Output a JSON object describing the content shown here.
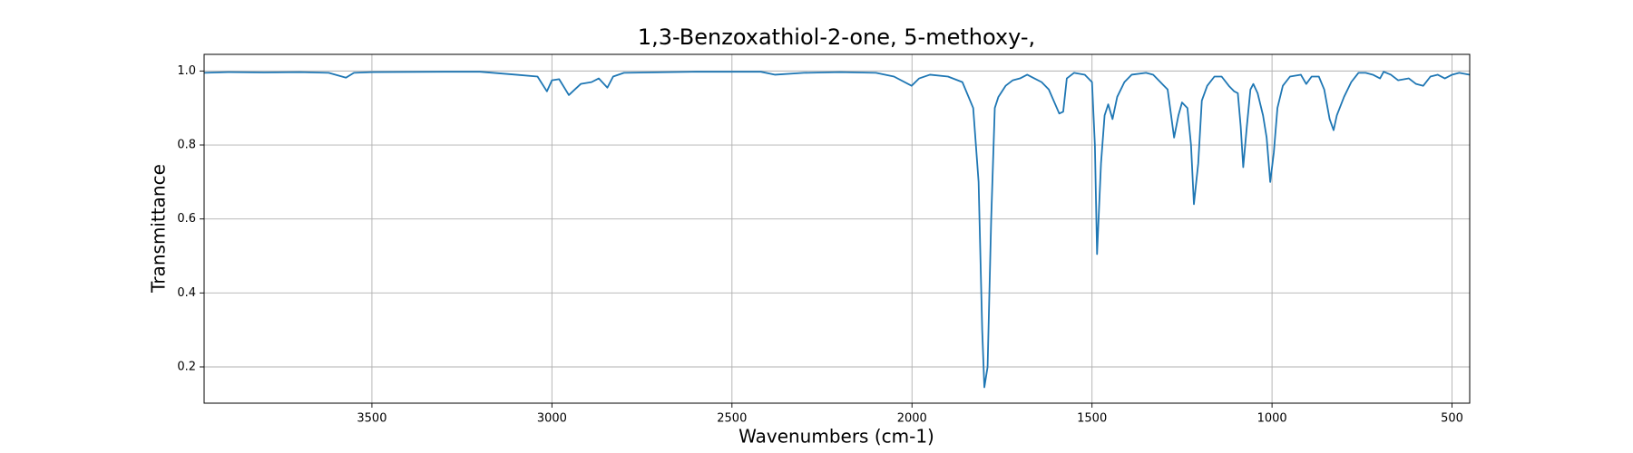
{
  "chart_data": {
    "type": "line",
    "title": "1,3-Benzoxathiol-2-one, 5-methoxy-,",
    "x_label": "Wavenumbers (cm-1)",
    "y_label": "Transmittance",
    "color": "#1f77b4",
    "grid": true,
    "xlim": [
      3966,
      451
    ],
    "ylim": [
      0.102,
      1.045
    ],
    "xticks": [
      3500,
      3000,
      2500,
      2000,
      1500,
      1000,
      500
    ],
    "yticks": [
      0.2,
      0.4,
      0.6,
      0.8,
      {
        "value": 1,
        "label": "1.0"
      }
    ],
    "x": [
      3966,
      3900,
      3800,
      3700,
      3620,
      3572,
      3550,
      3500,
      3300,
      3200,
      3100,
      3040,
      3014,
      3000,
      2980,
      2953,
      2920,
      2890,
      2870,
      2846,
      2830,
      2800,
      2600,
      2420,
      2380,
      2300,
      2200,
      2100,
      2050,
      2001,
      1980,
      1950,
      1900,
      1860,
      1830,
      1815,
      1805,
      1799,
      1790,
      1780,
      1770,
      1760,
      1740,
      1720,
      1700,
      1680,
      1660,
      1640,
      1620,
      1591,
      1580,
      1570,
      1550,
      1520,
      1500,
      1492,
      1486,
      1475,
      1465,
      1455,
      1443,
      1430,
      1410,
      1390,
      1350,
      1330,
      1300,
      1290,
      1272,
      1260,
      1250,
      1235,
      1225,
      1217,
      1205,
      1195,
      1180,
      1160,
      1140,
      1120,
      1105,
      1095,
      1087,
      1080,
      1070,
      1060,
      1052,
      1040,
      1025,
      1015,
      1005,
      995,
      985,
      970,
      950,
      920,
      905,
      890,
      870,
      855,
      840,
      829,
      820,
      800,
      780,
      760,
      740,
      720,
      700,
      690,
      670,
      650,
      620,
      600,
      580,
      560,
      540,
      520,
      500,
      480,
      451
    ],
    "values": [
      0.995,
      0.997,
      0.996,
      0.997,
      0.995,
      0.982,
      0.995,
      0.997,
      0.998,
      0.998,
      0.99,
      0.985,
      0.945,
      0.975,
      0.978,
      0.935,
      0.965,
      0.97,
      0.98,
      0.955,
      0.985,
      0.995,
      0.998,
      0.998,
      0.99,
      0.995,
      0.997,
      0.995,
      0.985,
      0.96,
      0.98,
      0.99,
      0.985,
      0.97,
      0.9,
      0.7,
      0.3,
      0.145,
      0.2,
      0.6,
      0.9,
      0.93,
      0.96,
      0.975,
      0.98,
      0.99,
      0.98,
      0.97,
      0.95,
      0.885,
      0.89,
      0.98,
      0.995,
      0.99,
      0.97,
      0.8,
      0.505,
      0.75,
      0.88,
      0.91,
      0.87,
      0.93,
      0.97,
      0.99,
      0.995,
      0.99,
      0.96,
      0.95,
      0.82,
      0.88,
      0.915,
      0.9,
      0.8,
      0.64,
      0.75,
      0.92,
      0.96,
      0.985,
      0.985,
      0.96,
      0.945,
      0.94,
      0.85,
      0.74,
      0.85,
      0.95,
      0.965,
      0.94,
      0.88,
      0.82,
      0.7,
      0.78,
      0.9,
      0.96,
      0.985,
      0.99,
      0.965,
      0.985,
      0.985,
      0.95,
      0.87,
      0.84,
      0.88,
      0.93,
      0.97,
      0.995,
      0.995,
      0.99,
      0.98,
      0.998,
      0.99,
      0.975,
      0.98,
      0.965,
      0.96,
      0.985,
      0.99,
      0.98,
      0.99,
      0.995,
      0.99
    ]
  }
}
